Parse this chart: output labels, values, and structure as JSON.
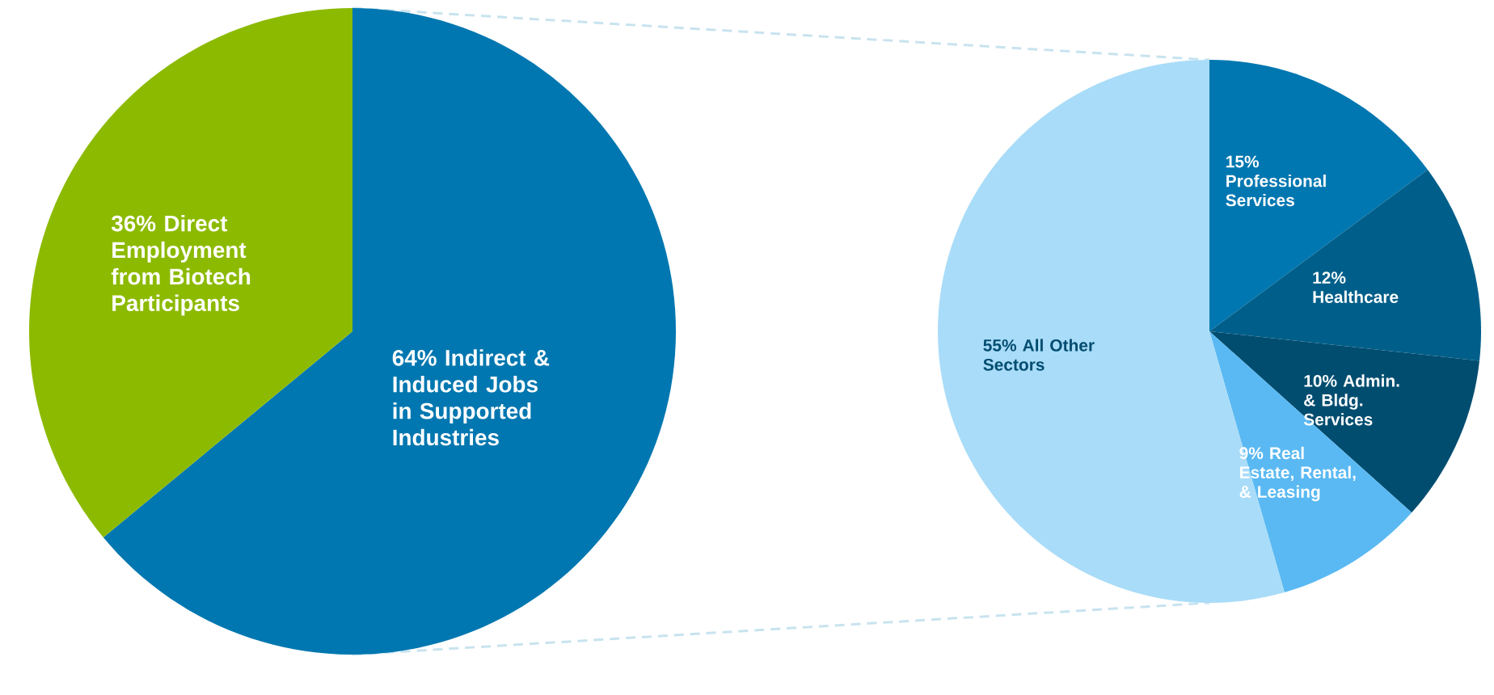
{
  "chart_data": [
    {
      "type": "pie",
      "categories": [
        "Indirect & Induced Jobs in Supported Industries",
        "Direct Employment from Biotech Participants"
      ],
      "values": [
        64,
        36
      ],
      "value_labels": [
        "64%",
        "36%"
      ],
      "colors": [
        "#0077b0",
        "#8cba00"
      ]
    },
    {
      "type": "pie",
      "categories": [
        "Professional Services",
        "Healthcare",
        "Admin. & Bldg. Services",
        "Real Estate, Rental, & Leasing",
        "All Other Sectors"
      ],
      "values": [
        15,
        12,
        10,
        9,
        55
      ],
      "value_labels": [
        "15%",
        "12%",
        "10%",
        "9%",
        "55%"
      ],
      "colors": [
        "#0077b0",
        "#005f8a",
        "#004d70",
        "#5ab9f2",
        "#a9dcf8"
      ]
    }
  ]
}
